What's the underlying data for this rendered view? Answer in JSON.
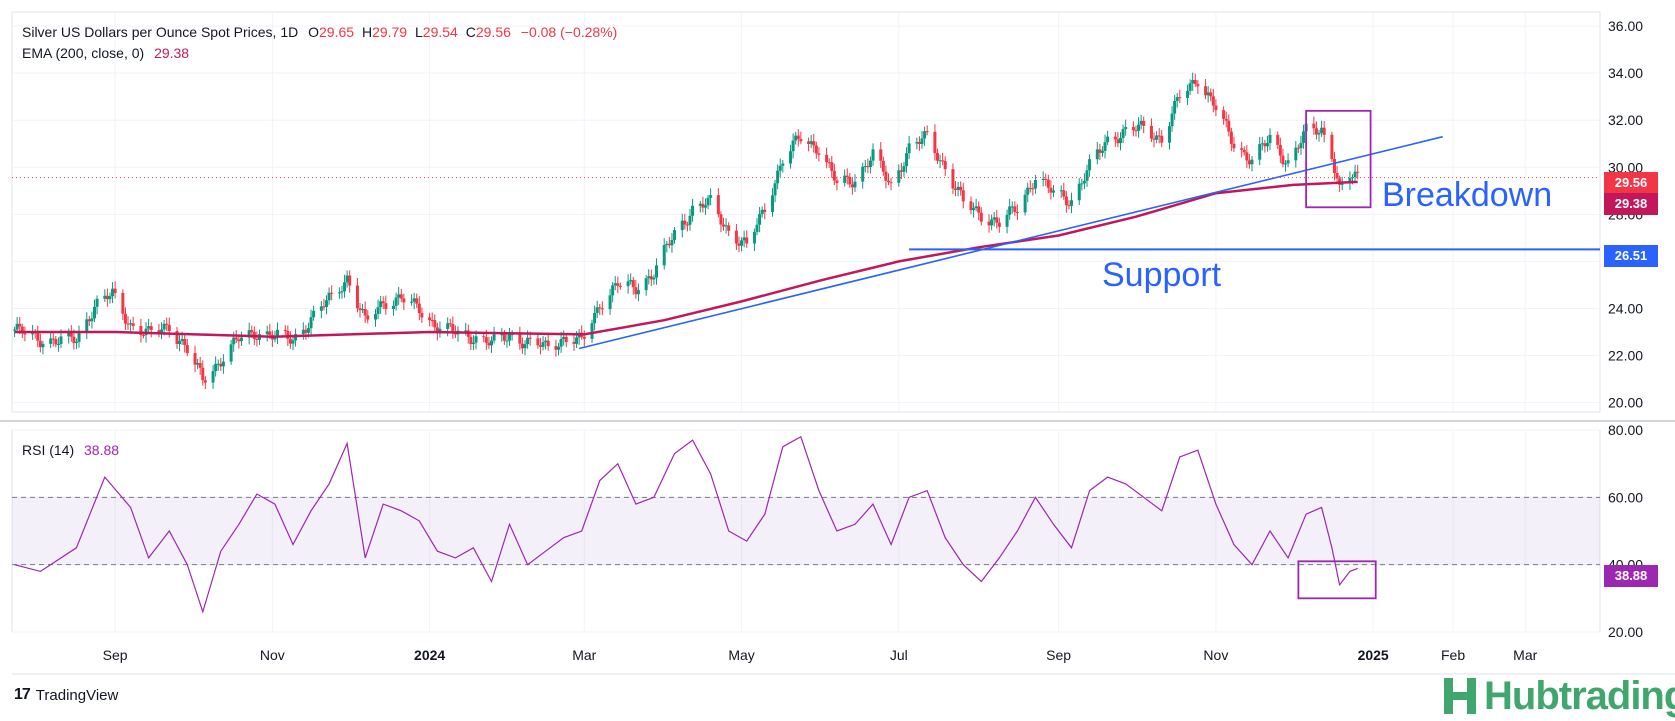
{
  "legend": {
    "title": "Silver US Dollars per Ounce Spot Prices, 1D",
    "open_label": "O",
    "open": "29.65",
    "high_label": "H",
    "high": "29.79",
    "low_label": "L",
    "low": "29.54",
    "close_label": "C",
    "close": "29.56",
    "change": "−0.08 (−0.28%)",
    "ema_label": "EMA (200, close, 0)",
    "ema_value": "29.38"
  },
  "rsi_legend": {
    "label": "RSI (14)",
    "value": "38.88"
  },
  "annotations": {
    "breakdown": "Breakdown",
    "support": "Support"
  },
  "badges": {
    "close": "29.56",
    "ema": "29.38",
    "support": "26.51",
    "rsi": "38.88",
    "close_color": "#f23645",
    "ema_color": "#c2185b",
    "support_color": "#2962ff",
    "rsi_color": "#9c27b0"
  },
  "branding": {
    "tradingview": "TradingView",
    "hub": "Hubtrading",
    "tv_logo": "17"
  },
  "colors": {
    "up": "#089981",
    "down": "#f23645",
    "ema": "#c2185b",
    "trend": "#2962ff",
    "rsi": "#9c27b0",
    "hub": "#3fa66e"
  },
  "chart_data": [
    {
      "type": "candlestick",
      "title": "Silver US Dollars per Ounce Spot Prices, 1D",
      "x_ticks": [
        "Sep",
        "Nov",
        "2024",
        "Mar",
        "May",
        "Jul",
        "Sep",
        "Nov",
        "2025",
        "Feb",
        "Mar"
      ],
      "x_tick_dates": [
        "2023-09-01",
        "2023-11-01",
        "2024-01-01",
        "2024-03-01",
        "2024-05-01",
        "2024-07-01",
        "2024-09-01",
        "2024-11-01",
        "2025-01-01",
        "2025-02-01",
        "2025-03-01"
      ],
      "x_range": [
        "2023-07-23",
        "2025-03-30"
      ],
      "y_ticks": [
        "20.00",
        "22.00",
        "24.00",
        "26.00",
        "28.00",
        "30.00",
        "32.00",
        "34.00",
        "36.00"
      ],
      "ylim": [
        19.6,
        36.6
      ],
      "series": [
        {
          "name": "Silver",
          "points": [
            [
              "2023-07-24",
              23.1
            ],
            [
              "2023-08-03",
              22.7
            ],
            [
              "2023-08-10",
              22.6
            ],
            [
              "2023-08-17",
              22.7
            ],
            [
              "2023-08-24",
              24.1
            ],
            [
              "2023-08-31",
              24.6
            ],
            [
              "2023-09-07",
              23.3
            ],
            [
              "2023-09-14",
              22.9
            ],
            [
              "2023-09-22",
              23.3
            ],
            [
              "2023-09-29",
              22.2
            ],
            [
              "2023-10-05",
              21.0
            ],
            [
              "2023-10-12",
              21.8
            ],
            [
              "2023-10-19",
              22.7
            ],
            [
              "2023-10-26",
              23.0
            ],
            [
              "2023-11-02",
              22.8
            ],
            [
              "2023-11-09",
              22.7
            ],
            [
              "2023-11-16",
              23.5
            ],
            [
              "2023-11-23",
              24.4
            ],
            [
              "2023-11-30",
              25.3
            ],
            [
              "2023-12-07",
              23.4
            ],
            [
              "2023-12-14",
              24.3
            ],
            [
              "2023-12-21",
              24.4
            ],
            [
              "2023-12-28",
              24.0
            ],
            [
              "2024-01-04",
              23.2
            ],
            [
              "2024-01-11",
              23.0
            ],
            [
              "2024-01-18",
              22.8
            ],
            [
              "2024-01-25",
              22.5
            ],
            [
              "2024-02-01",
              22.9
            ],
            [
              "2024-02-08",
              22.5
            ],
            [
              "2024-02-15",
              22.4
            ],
            [
              "2024-02-22",
              22.7
            ],
            [
              "2024-02-29",
              22.6
            ],
            [
              "2024-03-07",
              24.2
            ],
            [
              "2024-03-14",
              25.0
            ],
            [
              "2024-03-21",
              24.9
            ],
            [
              "2024-03-28",
              25.5
            ],
            [
              "2024-04-05",
              27.2
            ],
            [
              "2024-04-12",
              28.2
            ],
            [
              "2024-04-19",
              28.5
            ],
            [
              "2024-04-26",
              27.3
            ],
            [
              "2024-05-03",
              26.6
            ],
            [
              "2024-05-10",
              28.3
            ],
            [
              "2024-05-17",
              30.3
            ],
            [
              "2024-05-24",
              31.3
            ],
            [
              "2024-05-31",
              30.8
            ],
            [
              "2024-06-07",
              29.3
            ],
            [
              "2024-06-14",
              29.5
            ],
            [
              "2024-06-21",
              30.5
            ],
            [
              "2024-06-28",
              29.2
            ],
            [
              "2024-07-05",
              30.8
            ],
            [
              "2024-07-12",
              31.3
            ],
            [
              "2024-07-19",
              30.0
            ],
            [
              "2024-07-26",
              28.5
            ],
            [
              "2024-08-02",
              28.0
            ],
            [
              "2024-08-09",
              27.6
            ],
            [
              "2024-08-16",
              28.3
            ],
            [
              "2024-08-23",
              29.6
            ],
            [
              "2024-08-30",
              28.9
            ],
            [
              "2024-09-06",
              28.6
            ],
            [
              "2024-09-13",
              30.0
            ],
            [
              "2024-09-20",
              31.2
            ],
            [
              "2024-09-27",
              31.5
            ],
            [
              "2024-10-04",
              31.7
            ],
            [
              "2024-10-11",
              31.2
            ],
            [
              "2024-10-18",
              33.0
            ],
            [
              "2024-10-25",
              33.8
            ],
            [
              "2024-11-01",
              32.5
            ],
            [
              "2024-11-08",
              31.0
            ],
            [
              "2024-11-15",
              30.3
            ],
            [
              "2024-11-22",
              31.2
            ],
            [
              "2024-11-29",
              30.2
            ],
            [
              "2024-12-06",
              31.5
            ],
            [
              "2024-12-12",
              31.6
            ],
            [
              "2024-12-16",
              30.6
            ],
            [
              "2024-12-19",
              29.0
            ],
            [
              "2024-12-23",
              29.6
            ],
            [
              "2024-12-26",
              29.56
            ]
          ]
        },
        {
          "name": "EMA (200, close, 0)",
          "points": [
            [
              "2023-07-24",
              23.0
            ],
            [
              "2023-09-01",
              23.0
            ],
            [
              "2023-11-01",
              22.8
            ],
            [
              "2024-01-01",
              23.0
            ],
            [
              "2024-03-01",
              22.9
            ],
            [
              "2024-04-01",
              23.5
            ],
            [
              "2024-05-01",
              24.3
            ],
            [
              "2024-06-01",
              25.2
            ],
            [
              "2024-07-01",
              26.0
            ],
            [
              "2024-08-01",
              26.6
            ],
            [
              "2024-09-01",
              27.1
            ],
            [
              "2024-10-01",
              27.9
            ],
            [
              "2024-11-01",
              28.9
            ],
            [
              "2024-12-01",
              29.25
            ],
            [
              "2024-12-26",
              29.38
            ]
          ]
        }
      ],
      "lines": {
        "close": 29.56,
        "support": 26.51,
        "trendline": [
          [
            "2024-02-28",
            22.3
          ],
          [
            "2025-01-28",
            31.3
          ]
        ],
        "support_from": "2024-07-05",
        "breakdown_box": {
          "dates": [
            "2024-12-06",
            "2024-12-31"
          ],
          "values": [
            28.3,
            32.4
          ]
        }
      },
      "grid": true,
      "legend": "top-left"
    },
    {
      "type": "line",
      "title": "RSI (14)",
      "y_ticks": [
        "20.00",
        "40.00",
        "60.00",
        "80.00"
      ],
      "ylim": [
        20,
        80
      ],
      "band": [
        40,
        60
      ],
      "series": [
        {
          "name": "RSI (14)",
          "points": [
            [
              "2023-07-24",
              40
            ],
            [
              "2023-08-03",
              38
            ],
            [
              "2023-08-17",
              45
            ],
            [
              "2023-08-28",
              66
            ],
            [
              "2023-09-07",
              57
            ],
            [
              "2023-09-14",
              42
            ],
            [
              "2023-09-22",
              50
            ],
            [
              "2023-09-29",
              40
            ],
            [
              "2023-10-05",
              26
            ],
            [
              "2023-10-12",
              44
            ],
            [
              "2023-10-19",
              52
            ],
            [
              "2023-10-26",
              61
            ],
            [
              "2023-11-02",
              58
            ],
            [
              "2023-11-09",
              46
            ],
            [
              "2023-11-16",
              56
            ],
            [
              "2023-11-23",
              64
            ],
            [
              "2023-11-30",
              76
            ],
            [
              "2023-12-07",
              42
            ],
            [
              "2023-12-14",
              58
            ],
            [
              "2023-12-21",
              56
            ],
            [
              "2023-12-28",
              53
            ],
            [
              "2024-01-04",
              44
            ],
            [
              "2024-01-11",
              42
            ],
            [
              "2024-01-18",
              45
            ],
            [
              "2024-01-25",
              35
            ],
            [
              "2024-02-01",
              52
            ],
            [
              "2024-02-08",
              40
            ],
            [
              "2024-02-15",
              44
            ],
            [
              "2024-02-22",
              48
            ],
            [
              "2024-02-29",
              50
            ],
            [
              "2024-03-07",
              65
            ],
            [
              "2024-03-14",
              70
            ],
            [
              "2024-03-21",
              58
            ],
            [
              "2024-03-28",
              60
            ],
            [
              "2024-04-05",
              73
            ],
            [
              "2024-04-12",
              77
            ],
            [
              "2024-04-19",
              67
            ],
            [
              "2024-04-26",
              50
            ],
            [
              "2024-05-03",
              47
            ],
            [
              "2024-05-10",
              55
            ],
            [
              "2024-05-17",
              75
            ],
            [
              "2024-05-24",
              78
            ],
            [
              "2024-05-31",
              62
            ],
            [
              "2024-06-07",
              50
            ],
            [
              "2024-06-14",
              52
            ],
            [
              "2024-06-21",
              58
            ],
            [
              "2024-06-28",
              46
            ],
            [
              "2024-07-05",
              60
            ],
            [
              "2024-07-12",
              62
            ],
            [
              "2024-07-19",
              48
            ],
            [
              "2024-07-26",
              40
            ],
            [
              "2024-08-02",
              35
            ],
            [
              "2024-08-09",
              42
            ],
            [
              "2024-08-16",
              50
            ],
            [
              "2024-08-23",
              60
            ],
            [
              "2024-08-30",
              52
            ],
            [
              "2024-09-06",
              45
            ],
            [
              "2024-09-13",
              62
            ],
            [
              "2024-09-20",
              66
            ],
            [
              "2024-09-27",
              64
            ],
            [
              "2024-10-04",
              60
            ],
            [
              "2024-10-11",
              56
            ],
            [
              "2024-10-18",
              72
            ],
            [
              "2024-10-25",
              74
            ],
            [
              "2024-11-01",
              58
            ],
            [
              "2024-11-08",
              46
            ],
            [
              "2024-11-15",
              40
            ],
            [
              "2024-11-22",
              50
            ],
            [
              "2024-11-29",
              42
            ],
            [
              "2024-12-06",
              55
            ],
            [
              "2024-12-12",
              57
            ],
            [
              "2024-12-16",
              45
            ],
            [
              "2024-12-19",
              34
            ],
            [
              "2024-12-23",
              38
            ],
            [
              "2024-12-26",
              38.88
            ]
          ]
        }
      ],
      "rsi_box": {
        "dates": [
          "2024-12-03",
          "2025-01-02"
        ],
        "values": [
          30,
          41
        ]
      },
      "grid": true,
      "legend": "top-left"
    }
  ]
}
